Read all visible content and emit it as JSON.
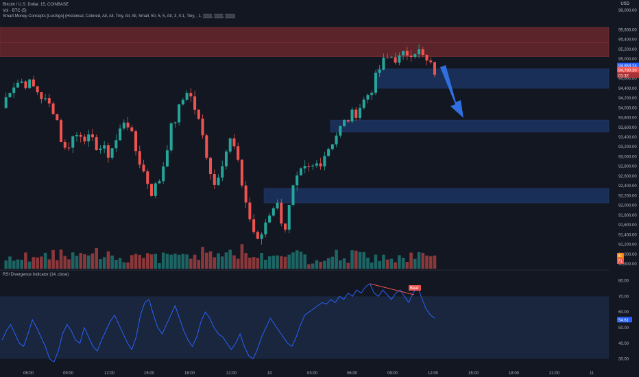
{
  "header": {
    "title_line": "Bitcoin / U.S. Dollar, 15, COINBASE",
    "volume_line": "Vol · BTC (5)",
    "smc_line": "Smart Money Concepts [LuxAlgo] (Historical, Colored, All, All, Tiny, All, All, Small, 50, 5, 5, Atr, 3, 0.1, Tiny, , 1, ▒▒▒, ▒▒▒, ▒▒▒)",
    "currency": "USD"
  },
  "rsi_pane": {
    "title": "RSI Divergence Indicator (14, close)",
    "value_label": "54.61",
    "bear_label": "Bear"
  },
  "price_badges": {
    "current": "94,853.24",
    "secondary": "94,780.30",
    "countdown": "01:32",
    "vol_a": "80",
    "vol_b": "71"
  },
  "colors": {
    "bg": "#131722",
    "up": "#26a69a",
    "down": "#ef5350",
    "ob_blue": "#1e3a6e",
    "ob_red": "#7a2a2e",
    "rsi": "#2962ff",
    "arrow": "#2f6fe0",
    "axis_text": "#b2b5be",
    "grid": "#1e222d"
  },
  "chart_data": [
    {
      "type": "candlestick",
      "title": "Bitcoin / U.S. Dollar, 15, COINBASE",
      "ylim": [
        90800,
        96000
      ],
      "y_ticks": [
        "96,000.00",
        "95,600.00",
        "95,400.00",
        "95,200.00",
        "95,000.00",
        "94,600.00",
        "94,400.00",
        "94,200.00",
        "94,000.00",
        "93,800.00",
        "93,600.00",
        "93,400.00",
        "93,200.00",
        "93,000.00",
        "92,800.00",
        "92,600.00",
        "92,400.00",
        "92,200.00",
        "92,000.00",
        "91,800.00",
        "91,600.00",
        "91,400.00",
        "91,200.00",
        "91,000.00",
        "90,800.00"
      ],
      "x_ticks": [
        "06:00",
        "09:00",
        "12:00",
        "15:00",
        "18:00",
        "21:00",
        "10",
        "03:00",
        "06:00",
        "09:00",
        "12:00",
        "15:00",
        "18:00",
        "21:00",
        "11"
      ],
      "close_path": [
        94000,
        94450,
        94550,
        94500,
        94350,
        94100,
        93950,
        93100,
        93400,
        93500,
        93300,
        93200,
        93050,
        93350,
        93850,
        93200,
        92700,
        92250,
        92600,
        93500,
        93950,
        94400,
        93900,
        93200,
        92400,
        92950,
        93400,
        92600,
        91750,
        91200,
        91750,
        92100,
        91500,
        92350,
        92700,
        92750,
        92900,
        93200,
        93500,
        93750,
        93900,
        94150,
        94450,
        94900,
        95050,
        95000,
        95150,
        95200,
        94950,
        94750
      ],
      "order_blocks": [
        {
          "low": 95350,
          "high": 95650,
          "kind": "bearish"
        },
        {
          "low": 95050,
          "high": 95350,
          "kind": "bearish"
        },
        {
          "low": 94400,
          "high": 94800,
          "kind": "bullish"
        },
        {
          "low": 93500,
          "high": 93750,
          "kind": "bullish"
        },
        {
          "low": 92050,
          "high": 92350,
          "kind": "bullish"
        }
      ],
      "projection": "down arrow toward 93,800"
    },
    {
      "type": "line",
      "title": "RSI Divergence Indicator (14, close)",
      "ylim": [
        25,
        85
      ],
      "y_ticks": [
        "80.00",
        "70.00",
        "60.00",
        "50.00",
        "40.00",
        "30.00"
      ],
      "bands": [
        30,
        70
      ],
      "last": 54.61,
      "values": [
        42,
        48,
        52,
        46,
        40,
        38,
        46,
        55,
        50,
        44,
        38,
        30,
        28,
        35,
        46,
        52,
        48,
        42,
        40,
        50,
        44,
        38,
        35,
        42,
        48,
        54,
        58,
        52,
        46,
        40,
        36,
        44,
        58,
        66,
        68,
        58,
        50,
        46,
        52,
        58,
        64,
        56,
        48,
        42,
        38,
        44,
        54,
        60,
        56,
        50,
        46,
        44,
        40,
        36,
        40,
        46,
        38,
        32,
        30,
        36,
        44,
        50,
        56,
        52,
        48,
        44,
        40,
        38,
        44,
        52,
        58,
        60,
        62,
        64,
        66,
        65,
        68,
        66,
        70,
        68,
        72,
        70,
        74,
        72,
        76,
        78,
        72,
        70,
        74,
        71,
        68,
        72,
        74,
        70,
        66,
        72,
        76,
        69,
        62,
        58,
        56
      ]
    }
  ]
}
